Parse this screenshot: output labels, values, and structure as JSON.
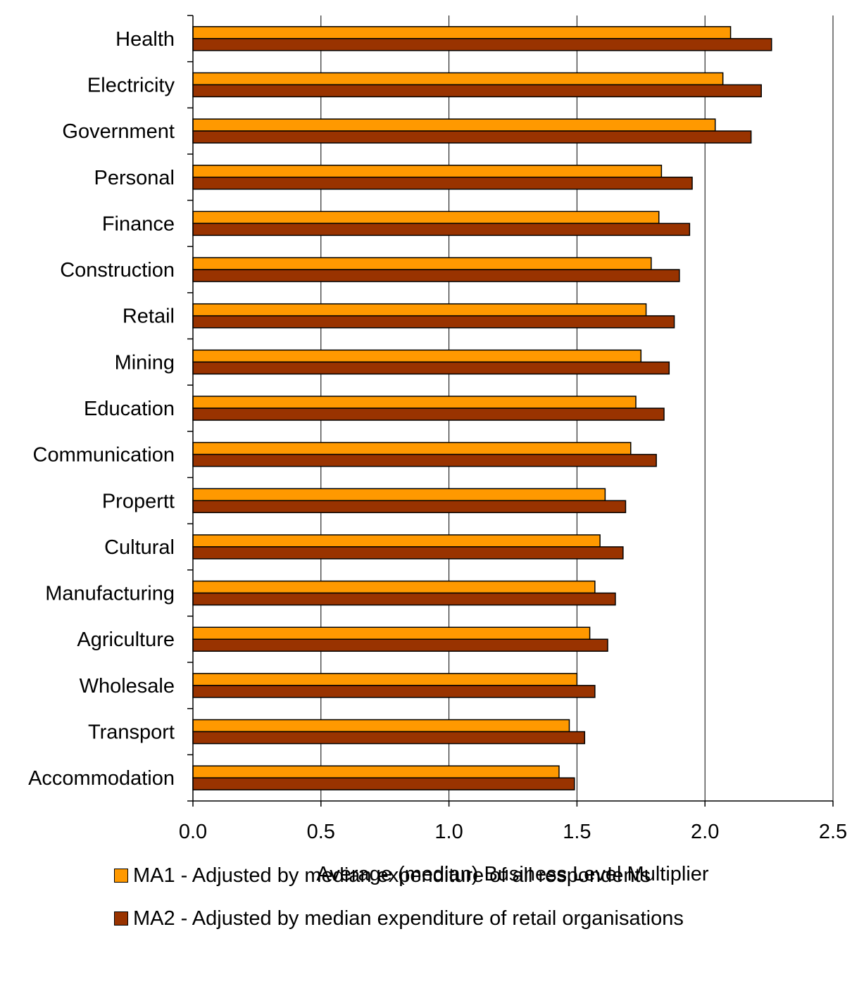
{
  "chart_data": {
    "type": "bar",
    "orientation": "horizontal",
    "categories": [
      "Health",
      "Electricity",
      "Government",
      "Personal",
      "Finance",
      "Construction",
      "Retail",
      "Mining",
      "Education",
      "Communication",
      "Propertt",
      "Cultural",
      "Manufacturing",
      "Agriculture",
      "Wholesale",
      "Transport",
      "Accommodation"
    ],
    "series": [
      {
        "name": "MA1 - Adjusted by median expenditure of all respondents",
        "color": "#FF9900",
        "values": [
          2.1,
          2.07,
          2.04,
          1.83,
          1.82,
          1.79,
          1.77,
          1.75,
          1.73,
          1.71,
          1.61,
          1.59,
          1.57,
          1.55,
          1.5,
          1.47,
          1.43
        ]
      },
      {
        "name": "MA2 - Adjusted by median expenditure of retail organisations",
        "color": "#993300",
        "values": [
          2.26,
          2.22,
          2.18,
          1.95,
          1.94,
          1.9,
          1.88,
          1.86,
          1.84,
          1.81,
          1.69,
          1.68,
          1.65,
          1.62,
          1.57,
          1.53,
          1.49
        ]
      }
    ],
    "xlabel": "Average (median) Business Level Multiplier",
    "ylabel": "",
    "xlim": [
      0,
      2.5
    ],
    "xticks": [
      "0.0",
      "0.5",
      "1.0",
      "1.5",
      "2.0",
      "2.5"
    ],
    "grid": "vertical major",
    "legend_position": "bottom"
  }
}
